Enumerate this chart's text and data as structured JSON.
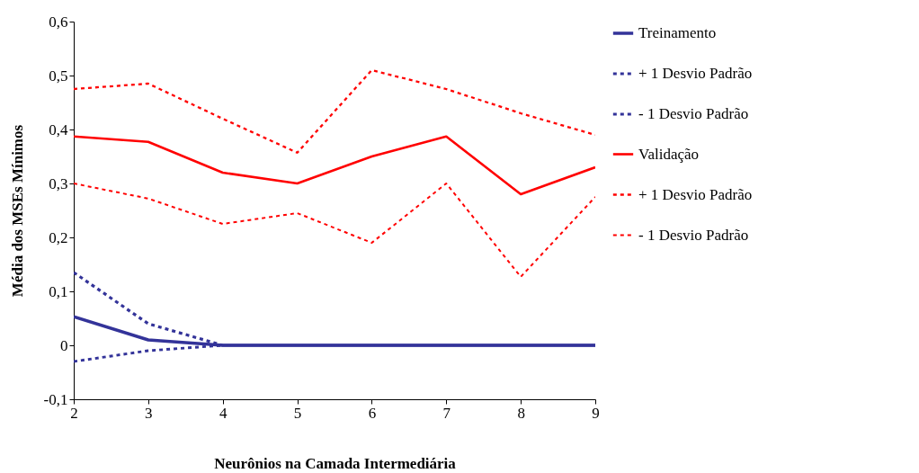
{
  "chart_data": {
    "type": "line",
    "xlabel": "Neurônios na Camada Intermediária",
    "ylabel": "Média dos MSEs Mínimos",
    "x": [
      2,
      3,
      4,
      5,
      6,
      7,
      8,
      9
    ],
    "xlim": [
      2,
      9
    ],
    "xticks": [
      2,
      3,
      4,
      5,
      6,
      7,
      8,
      9
    ],
    "ylim": [
      -0.1,
      0.6
    ],
    "yticks": [
      {
        "value": -0.1,
        "label": "-0,1"
      },
      {
        "value": 0,
        "label": "0"
      },
      {
        "value": 0.1,
        "label": "0,1"
      },
      {
        "value": 0.2,
        "label": "0,2"
      },
      {
        "value": 0.3,
        "label": "0,3"
      },
      {
        "value": 0.4,
        "label": "0,4"
      },
      {
        "value": 0.5,
        "label": "0,5"
      },
      {
        "value": 0.6,
        "label": "0,6"
      }
    ],
    "grid": false,
    "legend": "right",
    "marker": "none",
    "series": [
      {
        "name": "Treinamento",
        "color": "#333399",
        "line_style": "solid",
        "values": [
          0.053,
          0.01,
          0,
          0,
          0,
          0,
          0,
          0
        ]
      },
      {
        "name": "+ 1 Desvio Padrão",
        "color": "#333399",
        "line_style": "dashed",
        "values": [
          0.135,
          0.04,
          0,
          0,
          0,
          0,
          0,
          0
        ]
      },
      {
        "name": "- 1 Desvio Padrão",
        "color": "#333399",
        "line_style": "dashed",
        "values": [
          -0.03,
          -0.01,
          0,
          0,
          0,
          0,
          0,
          0
        ]
      },
      {
        "name": "Validação",
        "color": "#ff0000",
        "line_style": "solid",
        "values": [
          0.387,
          0.377,
          0.32,
          0.3,
          0.35,
          0.387,
          0.28,
          0.33
        ]
      },
      {
        "name": "+ 1 Desvio Padrão",
        "color": "#ff0000",
        "line_style": "dashed",
        "values": [
          0.475,
          0.485,
          0.42,
          0.357,
          0.51,
          0.475,
          0.43,
          0.39
        ]
      },
      {
        "name": "- 1 Desvio Padrão",
        "color": "#ff0000",
        "line_style": "dashed",
        "values": [
          0.3,
          0.272,
          0.225,
          0.245,
          0.19,
          0.3,
          0.127,
          0.275
        ]
      }
    ]
  }
}
